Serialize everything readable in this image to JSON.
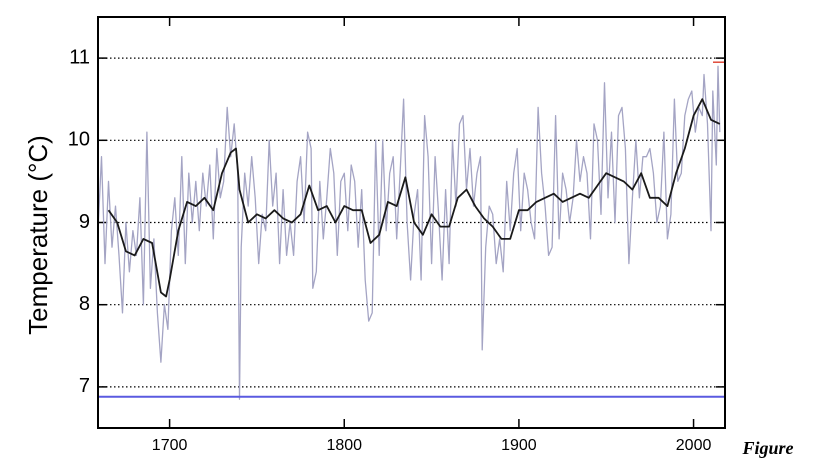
{
  "chart_data": {
    "type": "line",
    "ylabel": "Temperature (°C)",
    "caption": "Figure",
    "xlim": [
      1659,
      2018
    ],
    "ylim": [
      6.5,
      11.5
    ],
    "xticks": [
      1700,
      1800,
      1900,
      2000
    ],
    "yticks": [
      7,
      8,
      9,
      10,
      11
    ],
    "grid": true,
    "reference_lines": [
      {
        "value": 6.88,
        "color": "#5a5ae0"
      },
      {
        "value": 10.95,
        "color": "#e04a3a"
      }
    ],
    "series": [
      {
        "color": "#a4a4c4",
        "x": [
          1659,
          1661,
          1663,
          1665,
          1667,
          1669,
          1671,
          1673,
          1675,
          1677,
          1679,
          1681,
          1683,
          1685,
          1687,
          1689,
          1691,
          1693,
          1695,
          1697,
          1699,
          1701,
          1703,
          1705,
          1707,
          1709,
          1711,
          1713,
          1715,
          1717,
          1719,
          1721,
          1723,
          1725,
          1727,
          1729,
          1731,
          1733,
          1735,
          1737,
          1739,
          1740,
          1741,
          1743,
          1745,
          1747,
          1749,
          1751,
          1753,
          1755,
          1757,
          1759,
          1761,
          1763,
          1765,
          1767,
          1769,
          1771,
          1773,
          1775,
          1777,
          1779,
          1781,
          1782,
          1784,
          1786,
          1788,
          1790,
          1792,
          1794,
          1796,
          1798,
          1800,
          1802,
          1804,
          1806,
          1808,
          1810,
          1812,
          1814,
          1816,
          1818,
          1820,
          1822,
          1824,
          1826,
          1828,
          1830,
          1832,
          1834,
          1836,
          1838,
          1840,
          1842,
          1844,
          1846,
          1848,
          1850,
          1852,
          1854,
          1856,
          1858,
          1860,
          1862,
          1864,
          1866,
          1868,
          1870,
          1872,
          1874,
          1876,
          1878,
          1879,
          1881,
          1883,
          1885,
          1887,
          1889,
          1891,
          1893,
          1895,
          1897,
          1899,
          1901,
          1903,
          1905,
          1907,
          1909,
          1911,
          1913,
          1915,
          1917,
          1919,
          1921,
          1923,
          1925,
          1927,
          1929,
          1931,
          1933,
          1935,
          1937,
          1939,
          1941,
          1943,
          1945,
          1947,
          1949,
          1951,
          1953,
          1955,
          1957,
          1959,
          1961,
          1963,
          1965,
          1967,
          1969,
          1971,
          1973,
          1975,
          1977,
          1979,
          1981,
          1983,
          1985,
          1987,
          1989,
          1991,
          1993,
          1995,
          1997,
          1999,
          2001,
          2003,
          2005,
          2006,
          2008,
          2010,
          2011,
          2013,
          2014,
          2015
        ],
        "values": [
          8.9,
          9.8,
          8.5,
          9.5,
          8.7,
          9.2,
          8.6,
          7.9,
          9.0,
          8.4,
          8.9,
          8.6,
          9.3,
          8.0,
          10.1,
          8.2,
          8.8,
          7.9,
          7.3,
          8.0,
          7.7,
          8.9,
          9.3,
          8.6,
          9.8,
          8.5,
          9.6,
          9.0,
          9.5,
          8.9,
          9.6,
          9.2,
          9.7,
          8.8,
          9.9,
          9.3,
          9.5,
          10.4,
          9.8,
          10.2,
          9.6,
          6.85,
          8.7,
          9.6,
          9.2,
          9.8,
          9.3,
          8.5,
          9.1,
          8.9,
          10.0,
          9.2,
          9.6,
          8.5,
          9.4,
          8.6,
          9.0,
          8.6,
          9.5,
          9.8,
          9.0,
          10.1,
          9.9,
          8.2,
          8.4,
          9.5,
          8.8,
          9.3,
          9.9,
          9.6,
          8.6,
          9.5,
          9.6,
          8.9,
          9.7,
          9.5,
          8.7,
          9.4,
          8.3,
          7.8,
          7.9,
          10.0,
          8.6,
          10.0,
          8.9,
          9.6,
          9.8,
          8.8,
          9.6,
          10.5,
          9.0,
          8.3,
          9.1,
          9.4,
          8.3,
          10.3,
          9.8,
          8.5,
          9.8,
          9.1,
          8.3,
          9.4,
          8.5,
          10.0,
          9.2,
          10.2,
          10.3,
          9.4,
          9.9,
          9.2,
          9.6,
          9.8,
          7.45,
          8.7,
          9.2,
          9.1,
          8.5,
          8.8,
          8.4,
          9.5,
          8.9,
          9.6,
          9.9,
          8.9,
          9.6,
          9.4,
          9.0,
          8.8,
          10.4,
          9.6,
          9.2,
          8.6,
          8.7,
          10.3,
          8.8,
          9.6,
          9.4,
          9.0,
          9.3,
          10.0,
          9.5,
          9.8,
          9.6,
          8.8,
          10.2,
          10.0,
          9.1,
          10.7,
          9.3,
          10.1,
          9.0,
          10.3,
          10.4,
          9.9,
          8.5,
          9.3,
          10.0,
          9.3,
          9.8,
          9.8,
          9.9,
          9.6,
          9.0,
          9.2,
          10.1,
          8.8,
          9.1,
          10.5,
          9.5,
          9.6,
          10.3,
          10.5,
          10.6,
          10.1,
          10.4,
          10.3,
          10.8,
          10.2,
          8.9,
          10.6,
          9.7,
          10.9,
          10.1
        ]
      },
      {
        "color": "#1a1a1a",
        "x": [
          1665,
          1670,
          1675,
          1680,
          1685,
          1690,
          1695,
          1698,
          1700,
          1705,
          1710,
          1715,
          1720,
          1725,
          1730,
          1735,
          1738,
          1740,
          1745,
          1750,
          1755,
          1760,
          1765,
          1770,
          1775,
          1780,
          1785,
          1790,
          1795,
          1800,
          1805,
          1810,
          1815,
          1820,
          1825,
          1830,
          1835,
          1840,
          1845,
          1850,
          1855,
          1860,
          1865,
          1870,
          1875,
          1880,
          1885,
          1890,
          1895,
          1900,
          1905,
          1910,
          1915,
          1920,
          1925,
          1930,
          1935,
          1940,
          1945,
          1950,
          1955,
          1960,
          1965,
          1970,
          1975,
          1980,
          1985,
          1990,
          1995,
          2000,
          2005,
          2010,
          2015
        ],
        "values": [
          9.15,
          9.0,
          8.65,
          8.6,
          8.8,
          8.75,
          8.15,
          8.1,
          8.3,
          8.9,
          9.25,
          9.2,
          9.3,
          9.15,
          9.6,
          9.85,
          9.9,
          9.4,
          9.0,
          9.1,
          9.05,
          9.15,
          9.05,
          9.0,
          9.1,
          9.45,
          9.15,
          9.2,
          9.0,
          9.2,
          9.15,
          9.15,
          8.75,
          8.85,
          9.25,
          9.2,
          9.55,
          9.0,
          8.85,
          9.1,
          8.95,
          8.95,
          9.3,
          9.4,
          9.2,
          9.05,
          8.95,
          8.8,
          8.8,
          9.15,
          9.15,
          9.25,
          9.3,
          9.35,
          9.25,
          9.3,
          9.35,
          9.3,
          9.45,
          9.6,
          9.55,
          9.5,
          9.4,
          9.6,
          9.3,
          9.3,
          9.2,
          9.6,
          9.9,
          10.3,
          10.5,
          10.25,
          10.2
        ]
      }
    ]
  }
}
